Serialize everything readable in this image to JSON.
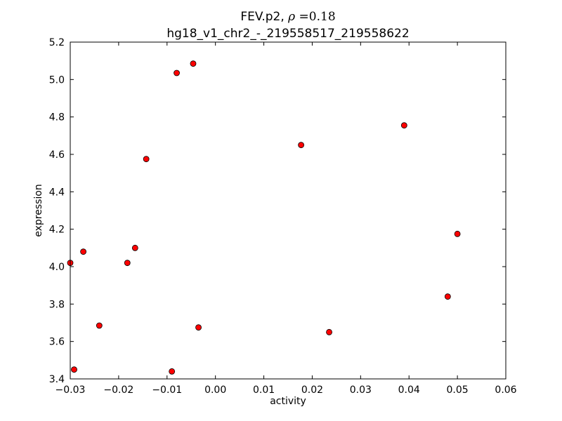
{
  "chart_data": {
    "type": "scatter",
    "title_line1_prefix": "FEV.p2, ",
    "title_line1_rho_symbol": "ρ",
    "title_line1_rho_value": " =0.18",
    "title_line2": "hg18_v1_chr2_-_219558517_219558622",
    "xlabel": "activity",
    "ylabel": "expression",
    "xlim": [
      -0.03,
      0.06
    ],
    "ylim": [
      3.4,
      5.2
    ],
    "xticks": [
      -0.03,
      -0.02,
      -0.01,
      0.0,
      0.01,
      0.02,
      0.03,
      0.04,
      0.05,
      0.06
    ],
    "xtick_labels": [
      "−0.03",
      "−0.02",
      "−0.01",
      "0.00",
      "0.01",
      "0.02",
      "0.03",
      "0.04",
      "0.05",
      "0.06"
    ],
    "yticks": [
      3.4,
      3.6,
      3.8,
      4.0,
      4.2,
      4.4,
      4.6,
      4.8,
      5.0,
      5.2
    ],
    "ytick_labels": [
      "3.4",
      "3.6",
      "3.8",
      "4.0",
      "4.2",
      "4.4",
      "4.6",
      "4.8",
      "5.0",
      "5.2"
    ],
    "marker_color": "#ff0000",
    "marker_edge_color": "#000000",
    "grid": false,
    "points": [
      {
        "x": -0.03,
        "y": 4.02
      },
      {
        "x": -0.0292,
        "y": 3.45
      },
      {
        "x": -0.0273,
        "y": 4.08
      },
      {
        "x": -0.024,
        "y": 3.685
      },
      {
        "x": -0.0182,
        "y": 4.02
      },
      {
        "x": -0.0166,
        "y": 4.1
      },
      {
        "x": -0.0143,
        "y": 4.575
      },
      {
        "x": -0.009,
        "y": 3.44
      },
      {
        "x": -0.008,
        "y": 5.035
      },
      {
        "x": -0.0046,
        "y": 5.085
      },
      {
        "x": -0.0035,
        "y": 3.675
      },
      {
        "x": 0.0177,
        "y": 4.65
      },
      {
        "x": 0.0235,
        "y": 3.65
      },
      {
        "x": 0.039,
        "y": 4.755
      },
      {
        "x": 0.048,
        "y": 3.84
      },
      {
        "x": 0.05,
        "y": 4.175
      }
    ]
  }
}
